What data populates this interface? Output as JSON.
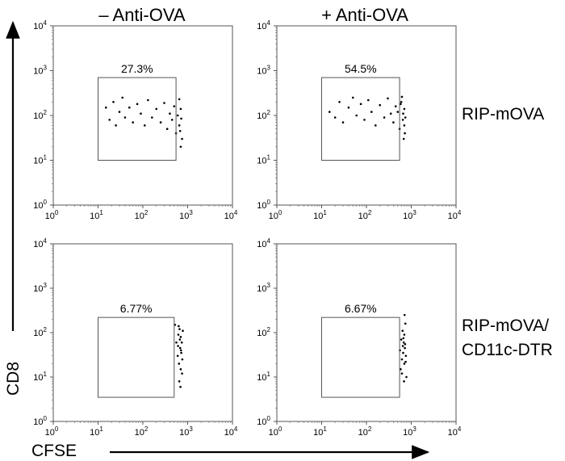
{
  "figure": {
    "col_titles": [
      "– Anti-OVA",
      "+ Anti-OVA"
    ],
    "row_labels": [
      [
        "RIP-mOVA"
      ],
      [
        "RIP-mOVA/",
        "CD11c-DTR"
      ]
    ],
    "x_axis_title": "CFSE",
    "y_axis_title": "CD8"
  },
  "chart_data": [
    {
      "type": "scatter",
      "title": "",
      "xlabel": "CFSE",
      "ylabel": "CD8",
      "x_scale": "log",
      "y_scale": "log",
      "xlim": [
        1,
        10000
      ],
      "ylim": [
        1,
        10000
      ],
      "tick_labels": [
        "10",
        "10",
        "10",
        "10",
        "10"
      ],
      "tick_exponents": [
        "0",
        "1",
        "2",
        "3",
        "4"
      ],
      "gate": {
        "x": [
          10,
          550
        ],
        "y": [
          10,
          700
        ],
        "label": "27.3%"
      },
      "points": [
        {
          "x": 15,
          "y": 150
        },
        {
          "x": 18,
          "y": 80
        },
        {
          "x": 22,
          "y": 200
        },
        {
          "x": 25,
          "y": 60
        },
        {
          "x": 30,
          "y": 120
        },
        {
          "x": 35,
          "y": 250
        },
        {
          "x": 40,
          "y": 90
        },
        {
          "x": 50,
          "y": 150
        },
        {
          "x": 60,
          "y": 70
        },
        {
          "x": 75,
          "y": 180
        },
        {
          "x": 90,
          "y": 110
        },
        {
          "x": 110,
          "y": 60
        },
        {
          "x": 130,
          "y": 220
        },
        {
          "x": 160,
          "y": 90
        },
        {
          "x": 200,
          "y": 140
        },
        {
          "x": 250,
          "y": 70
        },
        {
          "x": 300,
          "y": 190
        },
        {
          "x": 350,
          "y": 50
        },
        {
          "x": 400,
          "y": 110
        },
        {
          "x": 450,
          "y": 80
        },
        {
          "x": 500,
          "y": 160
        },
        {
          "x": 550,
          "y": 40
        },
        {
          "x": 600,
          "y": 100
        },
        {
          "x": 650,
          "y": 60
        },
        {
          "x": 700,
          "y": 140
        },
        {
          "x": 750,
          "y": 30
        },
        {
          "x": 700,
          "y": 20
        },
        {
          "x": 650,
          "y": 230
        },
        {
          "x": 720,
          "y": 85
        },
        {
          "x": 680,
          "y": 45
        }
      ]
    },
    {
      "type": "scatter",
      "title": "",
      "xlabel": "CFSE",
      "ylabel": "CD8",
      "x_scale": "log",
      "y_scale": "log",
      "xlim": [
        1,
        10000
      ],
      "ylim": [
        1,
        10000
      ],
      "tick_labels": [
        "10",
        "10",
        "10",
        "10",
        "10"
      ],
      "tick_exponents": [
        "0",
        "1",
        "2",
        "3",
        "4"
      ],
      "gate": {
        "x": [
          10,
          550
        ],
        "y": [
          10,
          700
        ],
        "label": "54.5%"
      },
      "points": [
        {
          "x": 15,
          "y": 120
        },
        {
          "x": 20,
          "y": 90
        },
        {
          "x": 25,
          "y": 200
        },
        {
          "x": 30,
          "y": 70
        },
        {
          "x": 40,
          "y": 150
        },
        {
          "x": 50,
          "y": 250
        },
        {
          "x": 60,
          "y": 100
        },
        {
          "x": 75,
          "y": 180
        },
        {
          "x": 90,
          "y": 80
        },
        {
          "x": 110,
          "y": 220
        },
        {
          "x": 130,
          "y": 120
        },
        {
          "x": 160,
          "y": 60
        },
        {
          "x": 200,
          "y": 170
        },
        {
          "x": 250,
          "y": 90
        },
        {
          "x": 300,
          "y": 240
        },
        {
          "x": 350,
          "y": 110
        },
        {
          "x": 400,
          "y": 70
        },
        {
          "x": 450,
          "y": 160
        },
        {
          "x": 500,
          "y": 120
        },
        {
          "x": 550,
          "y": 50
        },
        {
          "x": 600,
          "y": 200
        },
        {
          "x": 650,
          "y": 80
        },
        {
          "x": 700,
          "y": 140
        },
        {
          "x": 720,
          "y": 40
        },
        {
          "x": 680,
          "y": 30
        },
        {
          "x": 740,
          "y": 90
        },
        {
          "x": 620,
          "y": 260
        },
        {
          "x": 700,
          "y": 60
        },
        {
          "x": 660,
          "y": 110
        },
        {
          "x": 580,
          "y": 180
        }
      ]
    },
    {
      "type": "scatter",
      "title": "",
      "xlabel": "CFSE",
      "ylabel": "CD8",
      "x_scale": "log",
      "y_scale": "log",
      "xlim": [
        1,
        10000
      ],
      "ylim": [
        1,
        10000
      ],
      "tick_labels": [
        "10",
        "10",
        "10",
        "10",
        "10"
      ],
      "tick_exponents": [
        "0",
        "1",
        "2",
        "3",
        "4"
      ],
      "gate": {
        "x": [
          10,
          500
        ],
        "y": [
          3.5,
          220
        ],
        "label": "6.77%"
      },
      "points": [
        {
          "x": 520,
          "y": 150
        },
        {
          "x": 560,
          "y": 60
        },
        {
          "x": 600,
          "y": 30
        },
        {
          "x": 620,
          "y": 90
        },
        {
          "x": 640,
          "y": 20
        },
        {
          "x": 660,
          "y": 120
        },
        {
          "x": 680,
          "y": 45
        },
        {
          "x": 700,
          "y": 15
        },
        {
          "x": 700,
          "y": 80
        },
        {
          "x": 720,
          "y": 35
        },
        {
          "x": 740,
          "y": 60
        },
        {
          "x": 760,
          "y": 25
        },
        {
          "x": 780,
          "y": 110
        },
        {
          "x": 650,
          "y": 8
        },
        {
          "x": 690,
          "y": 6
        },
        {
          "x": 610,
          "y": 50
        },
        {
          "x": 670,
          "y": 70
        },
        {
          "x": 710,
          "y": 40
        },
        {
          "x": 630,
          "y": 140
        },
        {
          "x": 750,
          "y": 12
        }
      ]
    },
    {
      "type": "scatter",
      "title": "",
      "xlabel": "CFSE",
      "ylabel": "CD8",
      "x_scale": "log",
      "y_scale": "log",
      "xlim": [
        1,
        10000
      ],
      "ylim": [
        1,
        10000
      ],
      "tick_labels": [
        "10",
        "10",
        "10",
        "10",
        "10"
      ],
      "tick_exponents": [
        "0",
        "1",
        "2",
        "3",
        "4"
      ],
      "gate": {
        "x": [
          10,
          550
        ],
        "y": [
          3.5,
          220
        ],
        "label": "6.67%"
      },
      "points": [
        {
          "x": 560,
          "y": 40
        },
        {
          "x": 580,
          "y": 15
        },
        {
          "x": 600,
          "y": 70
        },
        {
          "x": 620,
          "y": 25
        },
        {
          "x": 640,
          "y": 110
        },
        {
          "x": 660,
          "y": 35
        },
        {
          "x": 680,
          "y": 60
        },
        {
          "x": 700,
          "y": 20
        },
        {
          "x": 700,
          "y": 90
        },
        {
          "x": 720,
          "y": 45
        },
        {
          "x": 740,
          "y": 160
        },
        {
          "x": 760,
          "y": 30
        },
        {
          "x": 780,
          "y": 10
        },
        {
          "x": 690,
          "y": 8
        },
        {
          "x": 710,
          "y": 250
        },
        {
          "x": 650,
          "y": 50
        },
        {
          "x": 670,
          "y": 75
        },
        {
          "x": 730,
          "y": 55
        },
        {
          "x": 620,
          "y": 12
        },
        {
          "x": 750,
          "y": 22
        }
      ]
    }
  ]
}
